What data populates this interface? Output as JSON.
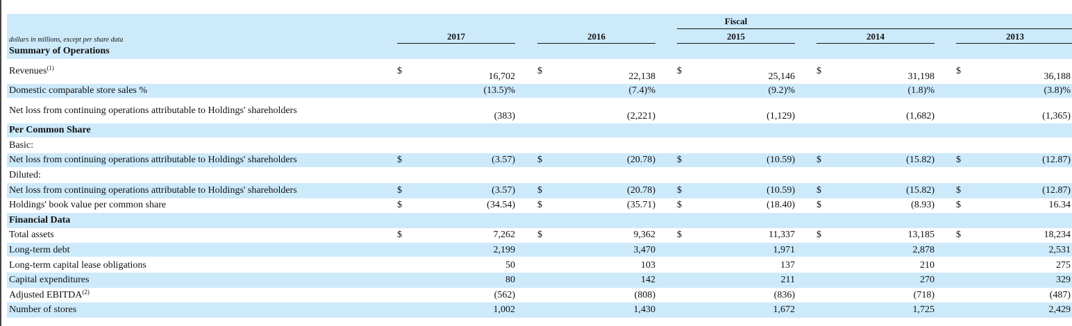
{
  "units_note": "dollars in millions, except per share data",
  "fiscal_label": "Fiscal",
  "years": [
    "2017",
    "2016",
    "2015",
    "2014",
    "2013"
  ],
  "rows": [
    {
      "label": "Summary of Operations",
      "bold": true,
      "shade": true
    },
    {
      "label": "Revenues",
      "sup": "(1)",
      "dollar": true,
      "values": [
        "16,702",
        "22,138",
        "25,146",
        "31,198",
        "36,188"
      ]
    },
    {
      "label": "Domestic comparable store sales %",
      "shade": true,
      "values": [
        "(13.5)%",
        "(7.4)%",
        "(9.2)%",
        "(1.8)%",
        "(3.8)%"
      ]
    },
    {
      "label": "Net loss from continuing operations attributable to Holdings' shareholders",
      "values": [
        "(383)",
        "(2,221)",
        "(1,129)",
        "(1,682)",
        "(1,365)"
      ]
    },
    {
      "label": "Per Common Share",
      "bold": true,
      "shade": true
    },
    {
      "label": "Basic:"
    },
    {
      "label": "Net loss from continuing operations attributable to Holdings' shareholders",
      "shade": true,
      "dollar": true,
      "values": [
        "(3.57)",
        "(20.78)",
        "(10.59)",
        "(15.82)",
        "(12.87)"
      ]
    },
    {
      "label": "Diluted:"
    },
    {
      "label": "Net loss from continuing operations attributable to Holdings' shareholders",
      "shade": true,
      "dollar": true,
      "values": [
        "(3.57)",
        "(20.78)",
        "(10.59)",
        "(15.82)",
        "(12.87)"
      ]
    },
    {
      "label": "Holdings' book value per common share",
      "dollar": true,
      "values": [
        "(34.54)",
        "(35.71)",
        "(18.40)",
        "(8.93)",
        "16.34"
      ]
    },
    {
      "label": "Financial Data",
      "bold": true,
      "shade": true
    },
    {
      "label": "Total assets",
      "dollar": true,
      "values": [
        "7,262",
        "9,362",
        "11,337",
        "13,185",
        "18,234"
      ]
    },
    {
      "label": "Long-term debt",
      "shade": true,
      "values": [
        "2,199",
        "3,470",
        "1,971",
        "2,878",
        "2,531"
      ]
    },
    {
      "label": "Long-term capital lease obligations",
      "values": [
        "50",
        "103",
        "137",
        "210",
        "275"
      ]
    },
    {
      "label": "Capital expenditures",
      "shade": true,
      "values": [
        "80",
        "142",
        "211",
        "270",
        "329"
      ]
    },
    {
      "label": "Adjusted EBITDA",
      "sup": "(2)",
      "values": [
        "(562)",
        "(808)",
        "(836)",
        "(718)",
        "(487)"
      ]
    },
    {
      "label": "Number of stores",
      "shade": true,
      "values": [
        "1,002",
        "1,430",
        "1,672",
        "1,725",
        "2,429"
      ]
    }
  ],
  "currency_symbol": "$",
  "colors": {
    "band": "#cdeafb",
    "text": "#111111"
  }
}
